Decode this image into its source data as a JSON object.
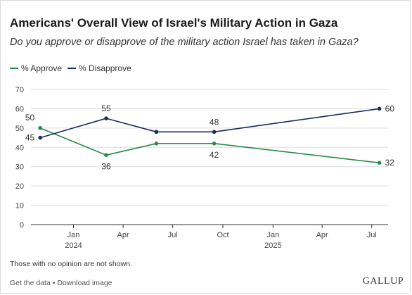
{
  "chart_data": {
    "type": "line",
    "title": "Americans' Overall View of Israel's Military Action in Gaza",
    "subtitle": "Do you approve or disapprove of the military action Israel has taken in Gaza?",
    "xlabel": "",
    "ylabel": "",
    "ylim": [
      0,
      70
    ],
    "yticks": [
      "0",
      "10",
      "20",
      "30",
      "40",
      "50",
      "60",
      "70"
    ],
    "xlim": [
      "2023-10-15",
      "2025-07-31"
    ],
    "xticks": [
      {
        "date": "2024-01-01",
        "label": "Jan",
        "year": "2024"
      },
      {
        "date": "2024-04-01",
        "label": "Apr",
        "year": ""
      },
      {
        "date": "2024-07-01",
        "label": "Jul",
        "year": ""
      },
      {
        "date": "2024-10-01",
        "label": "Oct",
        "year": ""
      },
      {
        "date": "2025-01-01",
        "label": "Jan",
        "year": "2025"
      },
      {
        "date": "2025-04-01",
        "label": "Apr",
        "year": ""
      },
      {
        "date": "2025-07-01",
        "label": "Jul",
        "year": ""
      }
    ],
    "grid": true,
    "legend_position": "top-left",
    "series": [
      {
        "name": "% Approve",
        "color": "#2a8a4a",
        "points": [
          {
            "x": "2023-11-01",
            "y": 50,
            "label": "50"
          },
          {
            "x": "2024-03-01",
            "y": 36,
            "label": "36"
          },
          {
            "x": "2024-06-01",
            "y": 42,
            "label": ""
          },
          {
            "x": "2024-09-15",
            "y": 42,
            "label": "42"
          },
          {
            "x": "2025-07-15",
            "y": 32,
            "label": "32"
          }
        ]
      },
      {
        "name": "% Disapprove",
        "color": "#1d2a5c",
        "points": [
          {
            "x": "2023-11-01",
            "y": 45,
            "label": "45"
          },
          {
            "x": "2024-03-01",
            "y": 55,
            "label": "55"
          },
          {
            "x": "2024-06-01",
            "y": 48,
            "label": ""
          },
          {
            "x": "2024-09-15",
            "y": 48,
            "label": "48"
          },
          {
            "x": "2025-07-15",
            "y": 60,
            "label": "60"
          }
        ]
      }
    ]
  },
  "note": "Those with no opinion are not shown.",
  "footer": {
    "get_data_label": "Get the data",
    "separator": " • ",
    "download_label": "Download image"
  },
  "brand": "GALLUP"
}
